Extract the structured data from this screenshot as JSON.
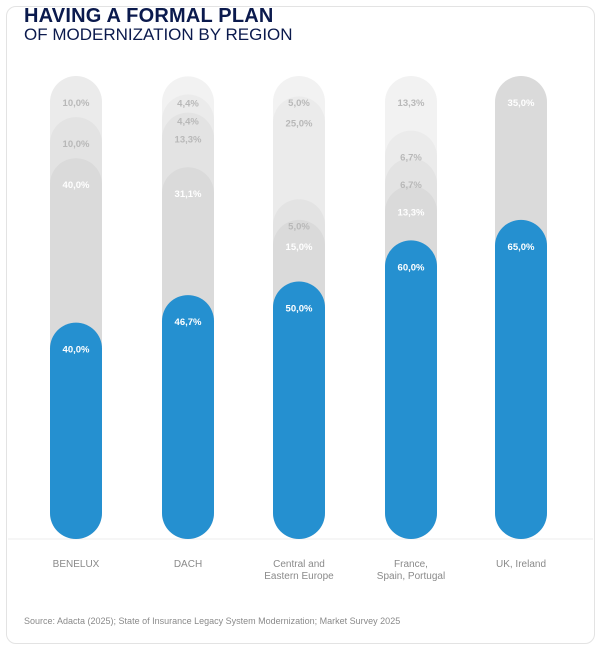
{
  "header": {
    "title": "HAVING A FORMAL PLAN",
    "subtitle": "OF MODERNIZATION BY REGION"
  },
  "source": "Source: Adacta (2025); State of Insurance Legacy System Modernization; Market Survey 2025",
  "colors": {
    "highlight": "#2590d0",
    "stack": [
      "#dadada",
      "#e3e3e3",
      "#ebebeb",
      "#f2f2f2"
    ],
    "label_light": "#ffffff",
    "label_gray": "#b8b8b8",
    "category_text": "#8a8a8a"
  },
  "chart_data": {
    "type": "bar",
    "stacked": true,
    "title": "",
    "xlabel": "",
    "ylabel": "",
    "ylim": [
      0,
      100
    ],
    "categories": [
      "BENELUX",
      "DACH",
      "Central and\nEastern Europe",
      "France,\nSpain, Portugal",
      "UK, Ireland"
    ],
    "bars": [
      {
        "segments": [
          {
            "value": 40.0,
            "label": "40,0%"
          },
          {
            "value": 40.0,
            "label": "40,0%"
          },
          {
            "value": 10.0,
            "label": "10,0%"
          },
          {
            "value": 10.0,
            "label": "10,0%"
          }
        ]
      },
      {
        "segments": [
          {
            "value": 46.7,
            "label": "46,7%"
          },
          {
            "value": 31.1,
            "label": "31,1%"
          },
          {
            "value": 13.3,
            "label": "13,3%"
          },
          {
            "value": 4.4,
            "label": "4,4%"
          },
          {
            "value": 4.4,
            "label": "4,4%"
          }
        ]
      },
      {
        "segments": [
          {
            "value": 50.0,
            "label": "50,0%"
          },
          {
            "value": 15.0,
            "label": "15,0%"
          },
          {
            "value": 5.0,
            "label": "5,0%"
          },
          {
            "value": 25.0,
            "label": "25,0%"
          },
          {
            "value": 5.0,
            "label": "5,0%"
          }
        ]
      },
      {
        "segments": [
          {
            "value": 60.0,
            "label": "60,0%"
          },
          {
            "value": 13.3,
            "label": "13,3%"
          },
          {
            "value": 6.7,
            "label": "6,7%"
          },
          {
            "value": 6.7,
            "label": "6,7%"
          },
          {
            "value": 13.3,
            "label": "13,3%"
          }
        ]
      },
      {
        "segments": [
          {
            "value": 65.0,
            "label": "65,0%"
          },
          {
            "value": 35.0,
            "label": "35,0%"
          }
        ]
      }
    ]
  }
}
